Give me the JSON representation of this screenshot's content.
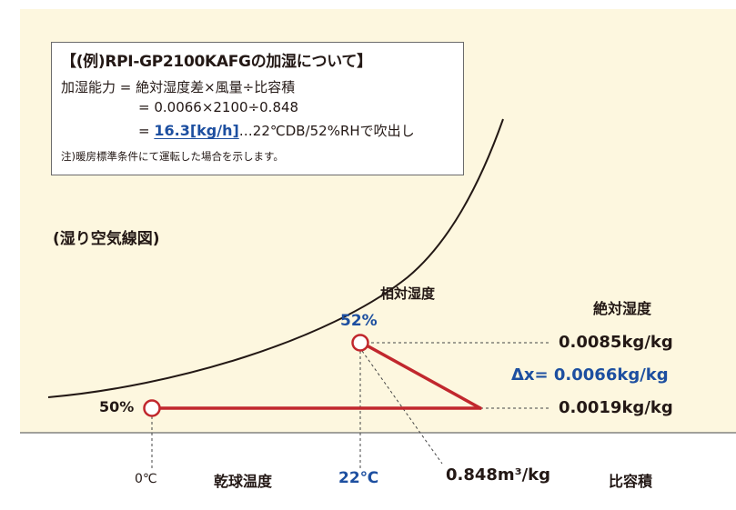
{
  "info_box": {
    "title": "【(例)RPI-GP2100KAFGの加湿について】",
    "formula_line1": "加湿能力 = 絶対湿度差×風量÷比容積",
    "formula_line2": "= 0.0066×2100÷0.848",
    "formula_line3_prefix": "= ",
    "formula_line3_result": "16.3[kg/h]",
    "formula_line3_suffix": "…22℃DB/52%RHで吹出し",
    "note": "注)暖房標準条件にて運転した場合を示します。"
  },
  "diagram": {
    "psychrometric_label": "(湿り空気線図)",
    "relative_humidity_title": "相対湿度",
    "absolute_humidity_title": "絶対湿度",
    "rh_outlet": "52%",
    "rh_inlet": "50%",
    "abs_outlet": "0.0085kg/kg",
    "delta_x": "Δx= 0.0066kg/kg",
    "abs_inlet": "0.0019kg/kg",
    "temp_inlet": "0℃",
    "dry_bulb_label": "乾球温度",
    "temp_outlet": "22℃",
    "specific_volume_value": "0.848m³/kg",
    "specific_volume_label": "比容積"
  },
  "colors": {
    "panel_bg": "#fdf7df",
    "process_line": "#c1272d",
    "highlight_blue": "#1d4fa0",
    "text": "#231815"
  }
}
